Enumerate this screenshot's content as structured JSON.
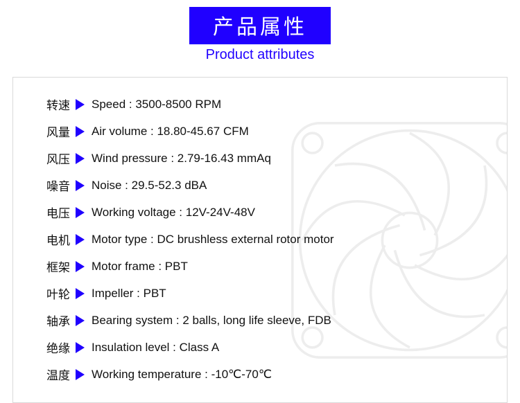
{
  "header": {
    "title_cn": "产品属性",
    "subtitle_en": "Product attributes",
    "badge_bg": "#2000ff",
    "badge_text_color": "#ffffff",
    "subtitle_color": "#2000ff"
  },
  "panel": {
    "border_color": "#d9d9d9",
    "triangle_color": "#2000ff",
    "text_color": "#111111",
    "font_size": 17,
    "bg_fan_opacity": 0.1
  },
  "attributes": [
    {
      "cn": "转速",
      "line": "Speed : 3500-8500 RPM"
    },
    {
      "cn": "风量",
      "line": "Air volume : 18.80-45.67 CFM"
    },
    {
      "cn": "风压",
      "line": "Wind pressure : 2.79-16.43 mmAq"
    },
    {
      "cn": "噪音",
      "line": "Noise : 29.5-52.3 dBA"
    },
    {
      "cn": "电压",
      "line": "Working voltage :  12V-24V-48V"
    },
    {
      "cn": "电机",
      "line": "Motor type : DC brushless external rotor motor"
    },
    {
      "cn": "框架",
      "line": "Motor frame : PBT"
    },
    {
      "cn": "叶轮",
      "line": "Impeller : PBT"
    },
    {
      "cn": "轴承",
      "line": "Bearing system : 2 balls, long life sleeve, FDB"
    },
    {
      "cn": "绝缘",
      "line": "Insulation level : Class A"
    },
    {
      "cn": "温度",
      "line": "Working temperature : -10℃-70℃"
    }
  ]
}
